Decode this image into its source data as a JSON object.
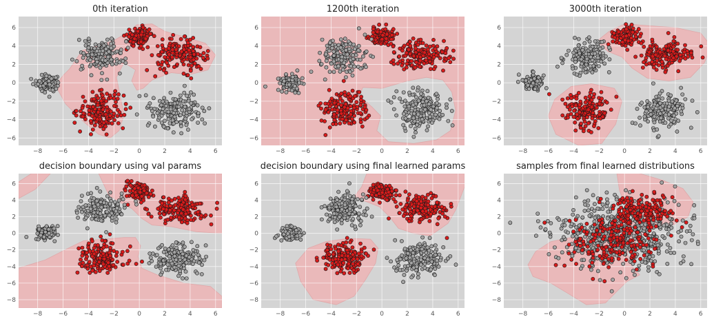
{
  "chart_data": [
    {
      "type": "scatter",
      "title": "0th iteration",
      "xlim": [
        -9.5,
        6.5
      ],
      "ylim": [
        -6.8,
        7.2
      ],
      "xticks": [
        -8,
        -6,
        -4,
        -2,
        0,
        2,
        4,
        6
      ],
      "yticks": [
        -6,
        -4,
        -2,
        0,
        2,
        4,
        6
      ],
      "background_color": "#d4d4d4",
      "region_color": "#eab9ba",
      "series": [
        {
          "color": "#d81b1b",
          "clusters": [
            {
              "center": [
                0,
                5
              ],
              "spread": [
                0.5,
                0.5
              ],
              "count": 120
            },
            {
              "center": [
                3.2,
                3
              ],
              "spread": [
                1.0,
                0.8
              ],
              "count": 170
            },
            {
              "center": [
                -3,
                -3
              ],
              "spread": [
                0.9,
                1.0
              ],
              "count": 160
            }
          ]
        },
        {
          "color": "#a3a3a3",
          "clusters": [
            {
              "center": [
                -3,
                3
              ],
              "spread": [
                0.9,
                0.9
              ],
              "count": 160
            },
            {
              "center": [
                -7.2,
                0
              ],
              "spread": [
                0.45,
                0.45
              ],
              "count": 100
            },
            {
              "center": [
                3,
                -3
              ],
              "spread": [
                1.0,
                1.0
              ],
              "count": 170
            }
          ]
        }
      ]
    },
    {
      "type": "scatter",
      "title": "1200th iteration",
      "xlim": [
        -9.5,
        6.5
      ],
      "ylim": [
        -6.8,
        7.2
      ],
      "xticks": [
        -8,
        -6,
        -4,
        -2,
        0,
        2,
        4,
        6
      ],
      "yticks": [
        -6,
        -4,
        -2,
        0,
        2,
        4,
        6
      ],
      "background_color": "#eab9ba",
      "region_color": "#d4d4d4",
      "series": [
        {
          "color": "#d81b1b",
          "clusters": [
            {
              "center": [
                0,
                5
              ],
              "spread": [
                0.5,
                0.5
              ],
              "count": 120
            },
            {
              "center": [
                3.2,
                3
              ],
              "spread": [
                1.0,
                0.8
              ],
              "count": 170
            },
            {
              "center": [
                -3,
                -3
              ],
              "spread": [
                0.9,
                1.0
              ],
              "count": 160
            }
          ]
        },
        {
          "color": "#a3a3a3",
          "clusters": [
            {
              "center": [
                -3,
                3
              ],
              "spread": [
                0.9,
                0.9
              ],
              "count": 160
            },
            {
              "center": [
                -7.2,
                0
              ],
              "spread": [
                0.45,
                0.45
              ],
              "count": 100
            },
            {
              "center": [
                3,
                -3
              ],
              "spread": [
                1.0,
                1.0
              ],
              "count": 170
            }
          ]
        }
      ]
    },
    {
      "type": "scatter",
      "title": "3000th iteration",
      "xlim": [
        -9.5,
        6.5
      ],
      "ylim": [
        -6.8,
        7.2
      ],
      "xticks": [
        -8,
        -6,
        -4,
        -2,
        0,
        2,
        4,
        6
      ],
      "yticks": [
        -6,
        -4,
        -2,
        0,
        2,
        4,
        6
      ],
      "background_color": "#d4d4d4",
      "region_color": "#eab9ba",
      "series": [
        {
          "color": "#d81b1b",
          "clusters": [
            {
              "center": [
                0,
                5
              ],
              "spread": [
                0.5,
                0.5
              ],
              "count": 120
            },
            {
              "center": [
                3.2,
                3
              ],
              "spread": [
                1.0,
                0.8
              ],
              "count": 170
            },
            {
              "center": [
                -3,
                -3
              ],
              "spread": [
                0.9,
                1.0
              ],
              "count": 160
            }
          ]
        },
        {
          "color": "#a3a3a3",
          "clusters": [
            {
              "center": [
                -3,
                3
              ],
              "spread": [
                0.9,
                0.9
              ],
              "count": 160
            },
            {
              "center": [
                -7.2,
                0
              ],
              "spread": [
                0.45,
                0.45
              ],
              "count": 100
            },
            {
              "center": [
                3,
                -3
              ],
              "spread": [
                1.0,
                1.0
              ],
              "count": 170
            }
          ]
        }
      ]
    },
    {
      "type": "scatter",
      "title": "decision boundary using val params",
      "xlim": [
        -9.5,
        6.5
      ],
      "ylim": [
        -9.0,
        7.2
      ],
      "xticks": [
        -8,
        -6,
        -4,
        -2,
        0,
        2,
        4,
        6
      ],
      "yticks": [
        -8,
        -6,
        -4,
        -2,
        0,
        2,
        4,
        6
      ],
      "background_color": "#d4d4d4",
      "region_color": "#eab9ba",
      "series": [
        {
          "color": "#d81b1b",
          "clusters": [
            {
              "center": [
                0,
                5
              ],
              "spread": [
                0.5,
                0.5
              ],
              "count": 120
            },
            {
              "center": [
                3.2,
                3
              ],
              "spread": [
                1.0,
                0.8
              ],
              "count": 170
            },
            {
              "center": [
                -3,
                -3
              ],
              "spread": [
                0.9,
                1.0
              ],
              "count": 160
            }
          ]
        },
        {
          "color": "#a3a3a3",
          "clusters": [
            {
              "center": [
                -3,
                3
              ],
              "spread": [
                0.9,
                0.9
              ],
              "count": 160
            },
            {
              "center": [
                -7.2,
                0
              ],
              "spread": [
                0.45,
                0.45
              ],
              "count": 100
            },
            {
              "center": [
                3,
                -3
              ],
              "spread": [
                1.0,
                1.0
              ],
              "count": 170
            }
          ]
        }
      ]
    },
    {
      "type": "scatter",
      "title": "decision boundary using final learned params",
      "xlim": [
        -9.5,
        6.5
      ],
      "ylim": [
        -9.0,
        7.2
      ],
      "xticks": [
        -8,
        -6,
        -4,
        -2,
        0,
        2,
        4,
        6
      ],
      "yticks": [
        -8,
        -6,
        -4,
        -2,
        0,
        2,
        4,
        6
      ],
      "background_color": "#d4d4d4",
      "region_color": "#eab9ba",
      "series": [
        {
          "color": "#d81b1b",
          "clusters": [
            {
              "center": [
                0,
                5
              ],
              "spread": [
                0.5,
                0.5
              ],
              "count": 120
            },
            {
              "center": [
                3.2,
                3
              ],
              "spread": [
                1.0,
                0.8
              ],
              "count": 170
            },
            {
              "center": [
                -3,
                -3
              ],
              "spread": [
                0.9,
                1.0
              ],
              "count": 160
            }
          ]
        },
        {
          "color": "#a3a3a3",
          "clusters": [
            {
              "center": [
                -3,
                3
              ],
              "spread": [
                0.9,
                0.9
              ],
              "count": 160
            },
            {
              "center": [
                -7.2,
                0
              ],
              "spread": [
                0.45,
                0.45
              ],
              "count": 100
            },
            {
              "center": [
                3,
                -3
              ],
              "spread": [
                1.0,
                1.0
              ],
              "count": 170
            }
          ]
        }
      ]
    },
    {
      "type": "scatter",
      "title": "samples from final learned distributions",
      "xlim": [
        -9.5,
        6.5
      ],
      "ylim": [
        -9.0,
        7.2
      ],
      "xticks": [
        -8,
        -6,
        -4,
        -2,
        0,
        2,
        4,
        6
      ],
      "yticks": [
        -8,
        -6,
        -4,
        -2,
        0,
        2,
        4,
        6
      ],
      "background_color": "#d4d4d4",
      "region_color": "#eab9ba",
      "series": [
        {
          "color": "#a3a3a3",
          "clusters": [
            {
              "center": [
                -0.5,
                0
              ],
              "spread": [
                2.6,
                2.0
              ],
              "count": 600
            }
          ]
        },
        {
          "color": "#d81b1b",
          "clusters": [
            {
              "center": [
                1.5,
                2.8
              ],
              "spread": [
                1.1,
                1.0
              ],
              "count": 170
            },
            {
              "center": [
                -1,
                -1
              ],
              "spread": [
                1.8,
                1.6
              ],
              "count": 200
            }
          ]
        }
      ]
    }
  ]
}
